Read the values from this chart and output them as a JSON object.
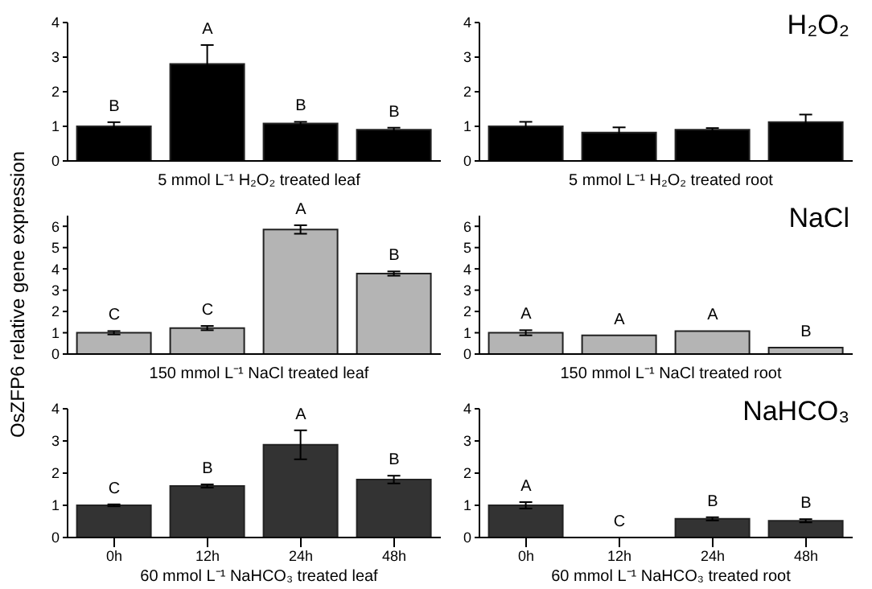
{
  "chart_data": [
    {
      "type": "bar",
      "categories": [
        "0h",
        "12h",
        "24h",
        "48h"
      ],
      "values": [
        1.0,
        2.8,
        1.08,
        0.9
      ],
      "errors": [
        0.12,
        0.55,
        0.05,
        0.06
      ],
      "color": "#000000",
      "ylim": [
        0,
        4
      ],
      "yticks": [
        0,
        1,
        2,
        3,
        4
      ],
      "tick_labels": "y",
      "xlabel": "5 mmol L⁻¹ H₂O₂ treated leaf",
      "annotations": [
        {
          "text": "B",
          "x": "0h",
          "y": 1.12
        },
        {
          "text": "A",
          "x": "12h",
          "y": 3.35
        },
        {
          "text": "B",
          "x": "24h",
          "y": 1.13
        },
        {
          "text": "B",
          "x": "48h",
          "y": 0.96
        }
      ]
    },
    {
      "type": "bar",
      "title": "H₂O₂",
      "categories": [
        "0h",
        "12h",
        "24h",
        "48h"
      ],
      "values": [
        1.0,
        0.82,
        0.9,
        1.12
      ],
      "errors": [
        0.13,
        0.15,
        0.05,
        0.22
      ],
      "color": "#000000",
      "ylim": [
        0,
        4
      ],
      "yticks": [
        0,
        1,
        2,
        3,
        4
      ],
      "tick_labels": "y",
      "xlabel": "5 mmol L⁻¹ H₂O₂ treated root"
    },
    {
      "type": "bar",
      "ylabel": "OsZFP6 relative gene expression",
      "categories": [
        "0h",
        "12h",
        "24h",
        "48h"
      ],
      "values": [
        1.0,
        1.22,
        5.85,
        3.78
      ],
      "errors": [
        0.08,
        0.1,
        0.2,
        0.1
      ],
      "color": "#b4b4b4",
      "ylim": [
        0,
        6.5
      ],
      "yticks": [
        0,
        1,
        2,
        3,
        4,
        5,
        6
      ],
      "tick_labels": "y",
      "xlabel": "150 mmol L⁻¹ NaCl treated leaf",
      "annotations": [
        {
          "text": "C",
          "x": "0h",
          "y": 1.08
        },
        {
          "text": "C",
          "x": "12h",
          "y": 1.32
        },
        {
          "text": "A",
          "x": "24h",
          "y": 6.05
        },
        {
          "text": "B",
          "x": "48h",
          "y": 3.88
        }
      ]
    },
    {
      "type": "bar",
      "title": "NaCl",
      "categories": [
        "0h",
        "12h",
        "24h",
        "48h"
      ],
      "values": [
        1.0,
        0.88,
        1.08,
        0.3
      ],
      "errors": [
        0.12,
        null,
        null,
        null
      ],
      "color": "#b4b4b4",
      "ylim": [
        0,
        6.5
      ],
      "yticks": [
        0,
        1,
        2,
        3,
        4,
        5,
        6
      ],
      "tick_labels": "y",
      "xlabel": "150 mmol L⁻¹ NaCl treated root",
      "annotations": [
        {
          "text": "A",
          "x": "0h",
          "y": 1.12
        },
        {
          "text": "A",
          "x": "12h",
          "y": 0.88
        },
        {
          "text": "A",
          "x": "24h",
          "y": 1.08
        },
        {
          "text": "B",
          "x": "48h",
          "y": 0.3
        }
      ]
    },
    {
      "type": "bar",
      "categories": [
        "0h",
        "12h",
        "24h",
        "48h"
      ],
      "values": [
        1.0,
        1.6,
        2.88,
        1.8
      ],
      "errors": [
        0.03,
        0.05,
        0.45,
        0.12
      ],
      "color": "#333333",
      "ylim": [
        0,
        4
      ],
      "yticks": [
        0,
        1,
        2,
        3,
        4
      ],
      "xlabel": "60 mmol L⁻¹ NaHCO₃ treated leaf",
      "annotations": [
        {
          "text": "C",
          "x": "0h",
          "y": 1.03
        },
        {
          "text": "B",
          "x": "12h",
          "y": 1.65
        },
        {
          "text": "A",
          "x": "24h",
          "y": 3.33
        },
        {
          "text": "B",
          "x": "48h",
          "y": 1.92
        }
      ]
    },
    {
      "type": "bar",
      "title": "NaHCO₃",
      "categories": [
        "0h",
        "12h",
        "24h",
        "48h"
      ],
      "values": [
        1.0,
        0,
        0.58,
        0.52
      ],
      "errors": [
        0.1,
        null,
        0.05,
        0.05
      ],
      "color": "#333333",
      "ylim": [
        0,
        4
      ],
      "yticks": [
        0,
        1,
        2,
        3,
        4
      ],
      "xlabel": "60 mmol L⁻¹ NaHCO₃ treated root",
      "annotations": [
        {
          "text": "A",
          "x": "0h",
          "y": 1.1
        },
        {
          "text": "C",
          "x": "12h",
          "y": 0
        },
        {
          "text": "B",
          "x": "24h",
          "y": 0.63
        },
        {
          "text": "B",
          "x": "48h",
          "y": 0.57
        }
      ]
    }
  ]
}
